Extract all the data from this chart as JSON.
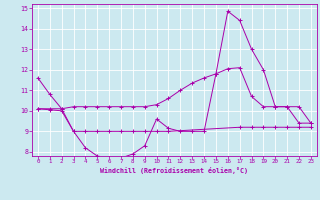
{
  "xlabel": "Windchill (Refroidissement éolien,°C)",
  "xlim": [
    -0.5,
    23.5
  ],
  "ylim": [
    7.8,
    15.2
  ],
  "yticks": [
    8,
    9,
    10,
    11,
    12,
    13,
    14,
    15
  ],
  "xticks": [
    0,
    1,
    2,
    3,
    4,
    5,
    6,
    7,
    8,
    9,
    10,
    11,
    12,
    13,
    14,
    15,
    16,
    17,
    18,
    19,
    20,
    21,
    22,
    23
  ],
  "bg_color": "#cce9f0",
  "line_color": "#aa00aa",
  "grid_color": "#ffffff",
  "line1_x": [
    0,
    1,
    2,
    3,
    4,
    5,
    6,
    7,
    8,
    9,
    10,
    11,
    12,
    13,
    14,
    15,
    16,
    17,
    18,
    19,
    20,
    21,
    22,
    23
  ],
  "line1_y": [
    11.6,
    10.8,
    10.1,
    9.0,
    8.2,
    7.8,
    7.7,
    7.7,
    7.9,
    8.3,
    9.6,
    9.15,
    9.0,
    9.0,
    9.0,
    11.8,
    14.85,
    14.4,
    13.0,
    12.0,
    10.2,
    10.2,
    10.2,
    9.4
  ],
  "line2_x": [
    0,
    1,
    2,
    3,
    4,
    5,
    6,
    7,
    8,
    9,
    10,
    11,
    12,
    13,
    14,
    15,
    16,
    17,
    18,
    19,
    20,
    21,
    22,
    23
  ],
  "line2_y": [
    10.1,
    10.1,
    10.1,
    10.2,
    10.2,
    10.2,
    10.2,
    10.2,
    10.2,
    10.2,
    10.3,
    10.6,
    11.0,
    11.35,
    11.6,
    11.8,
    12.05,
    12.1,
    10.7,
    10.2,
    10.2,
    10.2,
    9.4,
    9.4
  ],
  "line3_x": [
    0,
    1,
    2,
    3,
    4,
    5,
    6,
    7,
    8,
    9,
    10,
    11,
    17,
    18,
    19,
    20,
    21,
    22,
    23
  ],
  "line3_y": [
    10.1,
    10.05,
    10.0,
    9.0,
    9.0,
    9.0,
    9.0,
    9.0,
    9.0,
    9.0,
    9.0,
    9.0,
    9.2,
    9.2,
    9.2,
    9.2,
    9.2,
    9.2,
    9.2
  ]
}
